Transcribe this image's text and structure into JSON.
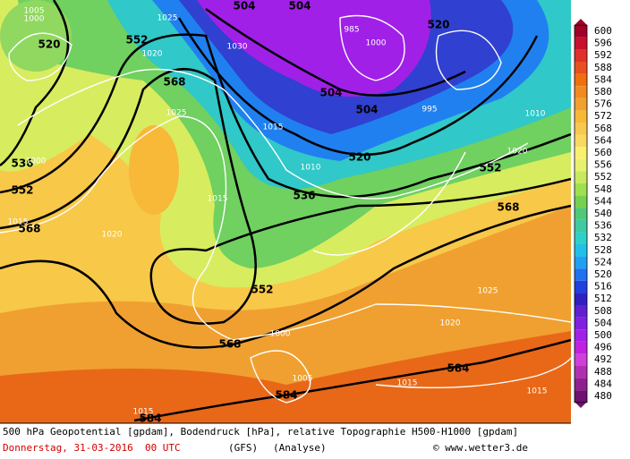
{
  "map": {
    "height_labels": [
      "504",
      "504",
      "504",
      "504",
      "520",
      "520",
      "520",
      "536",
      "536",
      "552",
      "552",
      "552",
      "552",
      "568",
      "568",
      "568",
      "568",
      "584",
      "584",
      "584"
    ],
    "pressure_labels": [
      "1005",
      "1000",
      "1025",
      "1030",
      "1020",
      "1020",
      "1020",
      "1020",
      "1025",
      "1025",
      "1015",
      "1015",
      "1015",
      "1015",
      "1015",
      "1015",
      "1010",
      "1010",
      "1000",
      "1000",
      "1000",
      "1005",
      "995",
      "985"
    ],
    "colorbar": {
      "levels": [
        600,
        596,
        592,
        588,
        584,
        580,
        576,
        572,
        568,
        564,
        560,
        556,
        552,
        548,
        544,
        540,
        536,
        532,
        528,
        524,
        520,
        516,
        512,
        508,
        504,
        500,
        496,
        492,
        488,
        484,
        480
      ],
      "colors": [
        "#a0002a",
        "#c8102e",
        "#e0302a",
        "#e85020",
        "#f07010",
        "#f08a20",
        "#f0a030",
        "#f8b838",
        "#f8c850",
        "#f8d860",
        "#f8f070",
        "#e8f070",
        "#c8e860",
        "#a0e050",
        "#78d050",
        "#50c878",
        "#40c8a0",
        "#30d0c8",
        "#20c0e8",
        "#20a0f0",
        "#2070f0",
        "#2040e0",
        "#3020c0",
        "#6020d0",
        "#8020e0",
        "#a020e8",
        "#c020e0",
        "#d040d8",
        "#b030b0",
        "#902090",
        "#701070"
      ]
    }
  },
  "footer": {
    "description": "500 hPa Geopotential [gpdam], Bodendruck [hPa], relative Topographie H500-H1000 [gpdam]",
    "date": "Donnerstag, 31-03-2016  00 UTC",
    "model": "(GFS)",
    "run": "(Analyse)",
    "credit": "© www.wetter3.de"
  }
}
